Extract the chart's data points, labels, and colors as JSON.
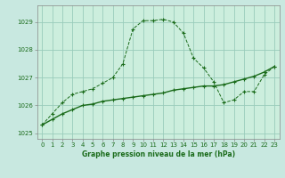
{
  "title": "Graphe pression niveau de la mer (hPa)",
  "bg_outer": "#c8e8e0",
  "bg_inner": "#cceedd",
  "grid_color": "#99ccbb",
  "line_color": "#1a6b1a",
  "border_color": "#888888",
  "xlim": [
    -0.5,
    23.5
  ],
  "ylim": [
    1024.8,
    1029.6
  ],
  "yticks": [
    1025,
    1026,
    1027,
    1028,
    1029
  ],
  "xticks": [
    0,
    1,
    2,
    3,
    4,
    5,
    6,
    7,
    8,
    9,
    10,
    11,
    12,
    13,
    14,
    15,
    16,
    17,
    18,
    19,
    20,
    21,
    22,
    23
  ],
  "series1_x": [
    0,
    1,
    2,
    3,
    4,
    5,
    6,
    7,
    8,
    9,
    10,
    11,
    12,
    13,
    14,
    15,
    16,
    17,
    18,
    19,
    20,
    21,
    22,
    23
  ],
  "series1_y": [
    1025.3,
    1025.7,
    1026.1,
    1026.4,
    1026.5,
    1026.6,
    1026.8,
    1027.0,
    1027.5,
    1028.75,
    1029.05,
    1029.05,
    1029.1,
    1029.0,
    1028.6,
    1027.7,
    1027.35,
    1026.85,
    1026.1,
    1026.2,
    1026.5,
    1026.5,
    1027.1,
    1027.4
  ],
  "series2_x": [
    0,
    1,
    2,
    3,
    4,
    5,
    6,
    7,
    8,
    9,
    10,
    11,
    12,
    13,
    14,
    15,
    16,
    17,
    18,
    19,
    20,
    21,
    22,
    23
  ],
  "series2_y": [
    1025.3,
    1025.5,
    1025.7,
    1025.85,
    1026.0,
    1026.05,
    1026.15,
    1026.2,
    1026.25,
    1026.3,
    1026.35,
    1026.4,
    1026.45,
    1026.55,
    1026.6,
    1026.65,
    1026.7,
    1026.7,
    1026.75,
    1026.85,
    1026.95,
    1027.05,
    1027.2,
    1027.4
  ],
  "title_fontsize": 5.5,
  "tick_fontsize": 5,
  "figsize": [
    3.2,
    2.0
  ],
  "dpi": 100
}
